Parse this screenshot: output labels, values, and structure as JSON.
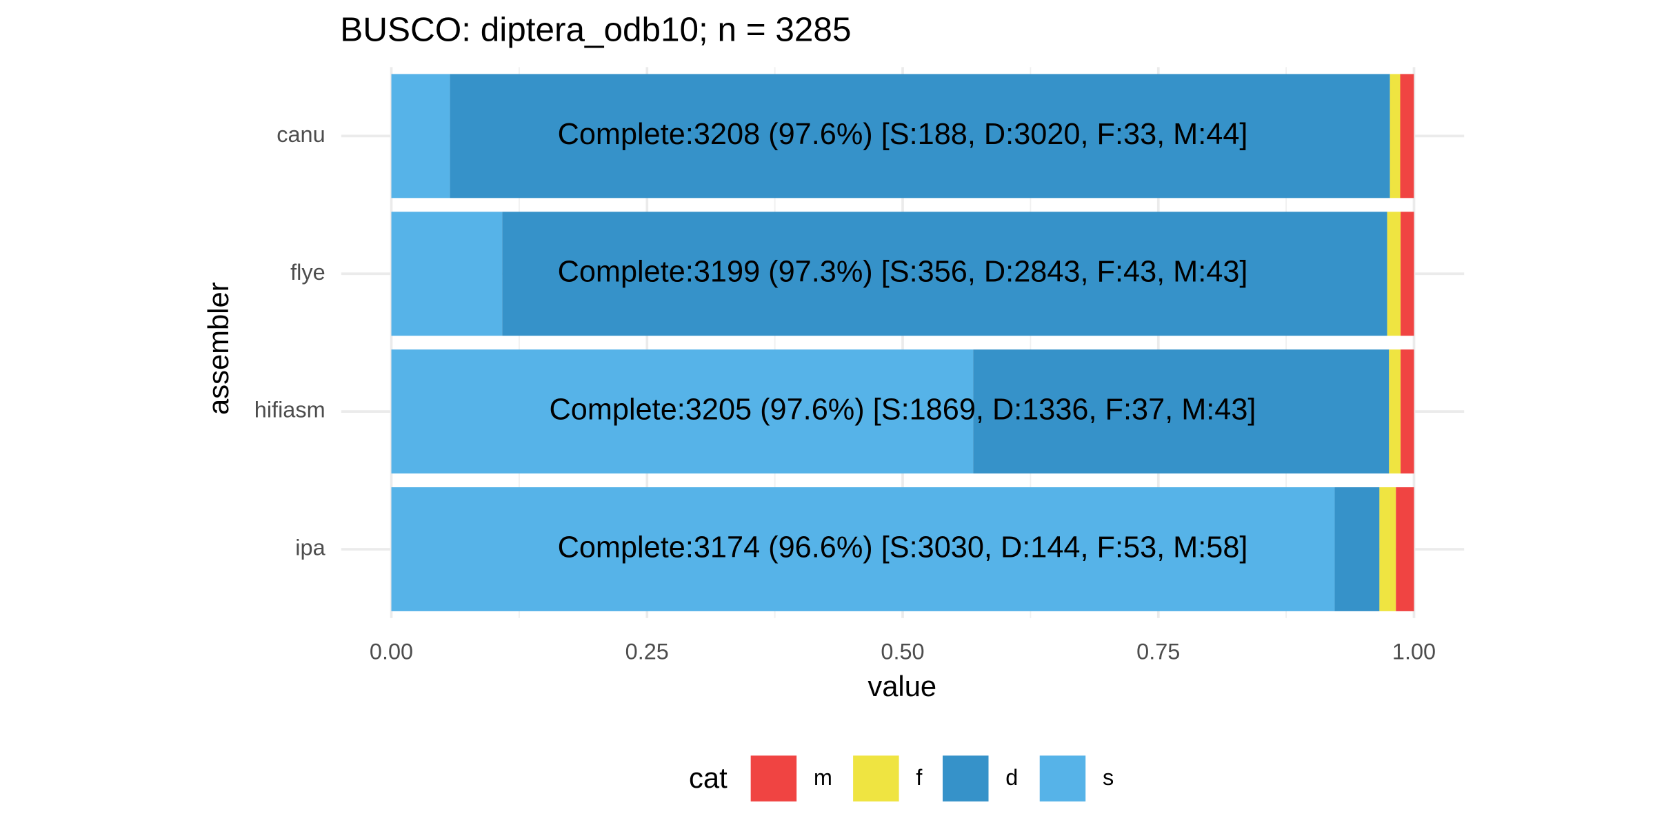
{
  "chart_data": {
    "type": "stacked-bar-horizontal",
    "title": "BUSCO: diptera_odb10; n = 3285",
    "x_label": "value",
    "y_label": "assembler",
    "categories": [
      "canu",
      "flye",
      "hifiasm",
      "ipa"
    ],
    "series": [
      {
        "name": "m",
        "color": "#f04442",
        "values": [
          0.0134,
          0.0131,
          0.0131,
          0.0177
        ]
      },
      {
        "name": "f",
        "color": "#efe441",
        "values": [
          0.01,
          0.0131,
          0.0113,
          0.0161
        ]
      },
      {
        "name": "d",
        "color": "#3692c9",
        "values": [
          0.9193,
          0.8654,
          0.4067,
          0.0438
        ]
      },
      {
        "name": "s",
        "color": "#56b3e8",
        "values": [
          0.0572,
          0.1084,
          0.5689,
          0.9224
        ]
      }
    ],
    "annotations": [
      "Complete:3208 (97.6%) [S:188, D:3020, F:33, M:44]",
      "Complete:3199 (97.3%) [S:356, D:2843, F:43, M:43]",
      "Complete:3205 (97.6%) [S:1869, D:1336, F:37, M:43]",
      "Complete:3174 (96.6%) [S:3030, D:144, F:53, M:58]"
    ],
    "xlim": [
      0,
      1
    ],
    "xticks": [
      {
        "value": 0,
        "label": "0.00"
      },
      {
        "value": 0.25,
        "label": "0.25"
      },
      {
        "value": 0.5,
        "label": "0.50"
      },
      {
        "value": 0.75,
        "label": "0.75"
      },
      {
        "value": 1,
        "label": "1.00"
      }
    ],
    "legend_title": "cat",
    "legend_position": "bottom",
    "grid": true
  }
}
